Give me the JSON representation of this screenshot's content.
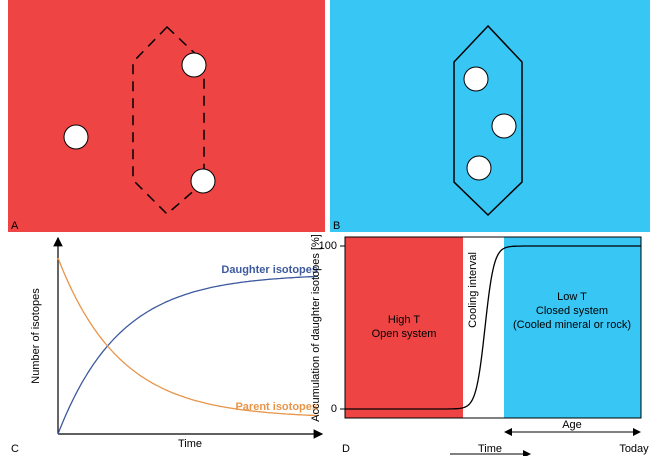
{
  "panels": {
    "a": {
      "label": "A"
    },
    "b": {
      "label": "B"
    },
    "c": {
      "label": "C",
      "y_axis": "Number of isotopes",
      "x_axis": "Time",
      "daughter": "Daughter isotopes",
      "parent": "Parent isotopes"
    },
    "d": {
      "label": "D",
      "y_axis": "Accumulation of daughter isotopes [%]",
      "yticks": [
        "100",
        "0"
      ],
      "high_t": [
        "High T",
        "Open system"
      ],
      "cooling": "Cooling interval",
      "low_t": [
        "Low T",
        "Closed system",
        "(Cooled mineral or rock)"
      ],
      "age": "Age",
      "time": "Time",
      "today": "Today"
    }
  }
}
